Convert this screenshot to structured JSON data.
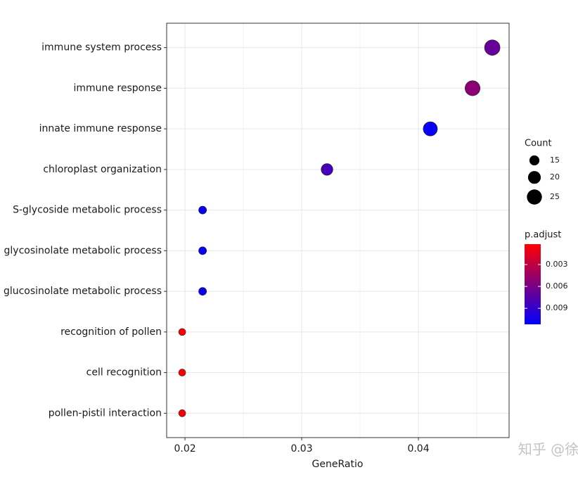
{
  "chart_data": {
    "type": "dot",
    "categories": [
      "immune system process",
      "immune response",
      "innate immune response",
      "chloroplast organization",
      "S-glycoside metabolic process",
      "glycosinolate metabolic process",
      "glucosinolate metabolic process",
      "recognition of pollen",
      "cell recognition",
      "pollen-pistil interaction"
    ],
    "gene_ratio": [
      0.04633,
      0.04464,
      0.04102,
      0.03217,
      0.02151,
      0.02151,
      0.02151,
      0.01976,
      0.01976,
      0.01976
    ],
    "count": [
      26,
      25,
      23,
      18,
      12,
      12,
      12,
      11,
      11,
      11
    ],
    "p_adjust": [
      0.0068,
      0.0052,
      0.0108,
      0.0082,
      0.0108,
      0.0108,
      0.0108,
      0.0004,
      0.0004,
      0.0004
    ],
    "xlabel": "GeneRatio",
    "xlim": [
      0.01843,
      0.04777
    ],
    "xticks": [
      0.02,
      0.03,
      0.04
    ],
    "grid": true,
    "size_title": "Count",
    "size_ticks": [
      15,
      20,
      25
    ],
    "color_title": "p.adjust",
    "color_low": "#ff0000",
    "color_high": "#0000ff",
    "clim": [
      0.0002,
      0.0112
    ],
    "cticks": [
      0.003,
      0.006,
      0.009
    ],
    "watermark": "知乎 @徐洲更"
  }
}
